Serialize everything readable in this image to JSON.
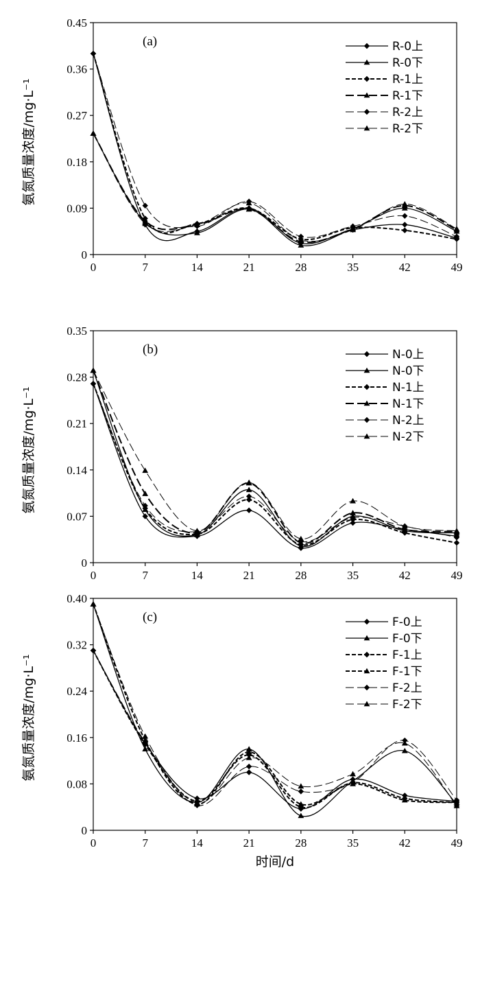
{
  "chart_data": [
    {
      "type": "line",
      "panel_label": "(a)",
      "ylabel": "氨氮质量浓度/mg·L⁻¹",
      "xlabel": "",
      "x": [
        0,
        7,
        14,
        21,
        28,
        35,
        42,
        49
      ],
      "x_ticks": [
        "0",
        "7",
        "14",
        "21",
        "28",
        "35",
        "42",
        "49"
      ],
      "xlim": [
        0,
        49
      ],
      "ylim": [
        0,
        0.45
      ],
      "y_ticks": [
        "0",
        "0.09",
        "0.18",
        "0.27",
        "0.36",
        "0.45"
      ],
      "legend_position": "top-right",
      "series": [
        {
          "name": "R-0上",
          "marker": "diamond",
          "dash": "solid",
          "width": 1.3,
          "values": [
            0.39,
            0.058,
            0.045,
            0.09,
            0.022,
            0.048,
            0.058,
            0.032
          ]
        },
        {
          "name": "R-0下",
          "marker": "triangle",
          "dash": "solid",
          "width": 1.3,
          "values": [
            0.235,
            0.062,
            0.042,
            0.088,
            0.018,
            0.05,
            0.09,
            0.045
          ]
        },
        {
          "name": "R-1上",
          "marker": "diamond",
          "dash": "short",
          "width": 2.0,
          "values": [
            0.39,
            0.07,
            0.06,
            0.09,
            0.03,
            0.052,
            0.047,
            0.03
          ]
        },
        {
          "name": "R-1下",
          "marker": "triangle",
          "dash": "long",
          "width": 2.0,
          "values": [
            0.235,
            0.065,
            0.058,
            0.088,
            0.025,
            0.05,
            0.095,
            0.048
          ]
        },
        {
          "name": "R-2上",
          "marker": "diamond",
          "dash": "long",
          "width": 1.0,
          "values": [
            0.39,
            0.095,
            0.055,
            0.103,
            0.035,
            0.055,
            0.075,
            0.035
          ]
        },
        {
          "name": "R-2下",
          "marker": "triangle",
          "dash": "long",
          "width": 1.0,
          "values": [
            0.235,
            0.06,
            0.058,
            0.1,
            0.028,
            0.048,
            0.098,
            0.05
          ]
        }
      ]
    },
    {
      "type": "line",
      "panel_label": "(b)",
      "ylabel": "氨氮质量浓度/mg·L⁻¹",
      "xlabel": "",
      "x": [
        0,
        7,
        14,
        21,
        28,
        35,
        42,
        49
      ],
      "x_ticks": [
        "0",
        "7",
        "14",
        "21",
        "28",
        "35",
        "42",
        "49"
      ],
      "xlim": [
        0,
        49
      ],
      "ylim": [
        0,
        0.35
      ],
      "y_ticks": [
        "0",
        "0.07",
        "0.14",
        "0.21",
        "0.28",
        "0.35"
      ],
      "legend_position": "top-right",
      "series": [
        {
          "name": "N-0上",
          "marker": "diamond",
          "dash": "solid",
          "width": 1.3,
          "values": [
            0.27,
            0.07,
            0.04,
            0.079,
            0.022,
            0.06,
            0.05,
            0.04
          ]
        },
        {
          "name": "N-0下",
          "marker": "triangle",
          "dash": "solid",
          "width": 1.3,
          "values": [
            0.29,
            0.08,
            0.042,
            0.11,
            0.025,
            0.07,
            0.048,
            0.045
          ]
        },
        {
          "name": "N-1上",
          "marker": "diamond",
          "dash": "short",
          "width": 2.0,
          "values": [
            0.27,
            0.082,
            0.043,
            0.095,
            0.027,
            0.065,
            0.045,
            0.03
          ]
        },
        {
          "name": "N-1下",
          "marker": "triangle",
          "dash": "long",
          "width": 2.0,
          "values": [
            0.29,
            0.104,
            0.045,
            0.12,
            0.03,
            0.075,
            0.05,
            0.047
          ]
        },
        {
          "name": "N-2上",
          "marker": "diamond",
          "dash": "long",
          "width": 1.0,
          "values": [
            0.27,
            0.086,
            0.047,
            0.1,
            0.032,
            0.068,
            0.055,
            0.038
          ]
        },
        {
          "name": "N-2下",
          "marker": "triangle",
          "dash": "long",
          "width": 1.0,
          "values": [
            0.29,
            0.139,
            0.048,
            0.121,
            0.036,
            0.093,
            0.055,
            0.048
          ]
        }
      ]
    },
    {
      "type": "line",
      "panel_label": "(c)",
      "ylabel": "氨氮质量浓度/mg·L⁻¹",
      "xlabel": "时间/d",
      "x": [
        0,
        7,
        14,
        21,
        28,
        35,
        42,
        49
      ],
      "x_ticks": [
        "0",
        "7",
        "14",
        "21",
        "28",
        "35",
        "42",
        "49"
      ],
      "xlim": [
        0,
        49
      ],
      "ylim": [
        0,
        0.4
      ],
      "y_ticks": [
        "0",
        "0.08",
        "0.16",
        "0.24",
        "0.32",
        "0.40"
      ],
      "legend_position": "top-right",
      "series": [
        {
          "name": "F-0上",
          "marker": "diamond",
          "dash": "solid",
          "width": 1.3,
          "values": [
            0.31,
            0.15,
            0.055,
            0.1,
            0.037,
            0.088,
            0.06,
            0.05
          ]
        },
        {
          "name": "F-0下",
          "marker": "triangle",
          "dash": "solid",
          "width": 1.3,
          "values": [
            0.39,
            0.14,
            0.048,
            0.14,
            0.025,
            0.085,
            0.137,
            0.045
          ]
        },
        {
          "name": "F-1上",
          "marker": "diamond",
          "dash": "short",
          "width": 2.0,
          "values": [
            0.31,
            0.148,
            0.05,
            0.13,
            0.04,
            0.082,
            0.055,
            0.048
          ]
        },
        {
          "name": "F-1下",
          "marker": "triangle",
          "dash": "short",
          "width": 2.0,
          "values": [
            0.39,
            0.155,
            0.045,
            0.135,
            0.045,
            0.08,
            0.052,
            0.048
          ]
        },
        {
          "name": "F-2上",
          "marker": "diamond",
          "dash": "long",
          "width": 1.0,
          "values": [
            0.31,
            0.152,
            0.043,
            0.11,
            0.067,
            0.083,
            0.155,
            0.052
          ]
        },
        {
          "name": "F-2下",
          "marker": "triangle",
          "dash": "long",
          "width": 1.0,
          "values": [
            0.39,
            0.162,
            0.047,
            0.125,
            0.076,
            0.097,
            0.15,
            0.042
          ]
        }
      ]
    }
  ]
}
